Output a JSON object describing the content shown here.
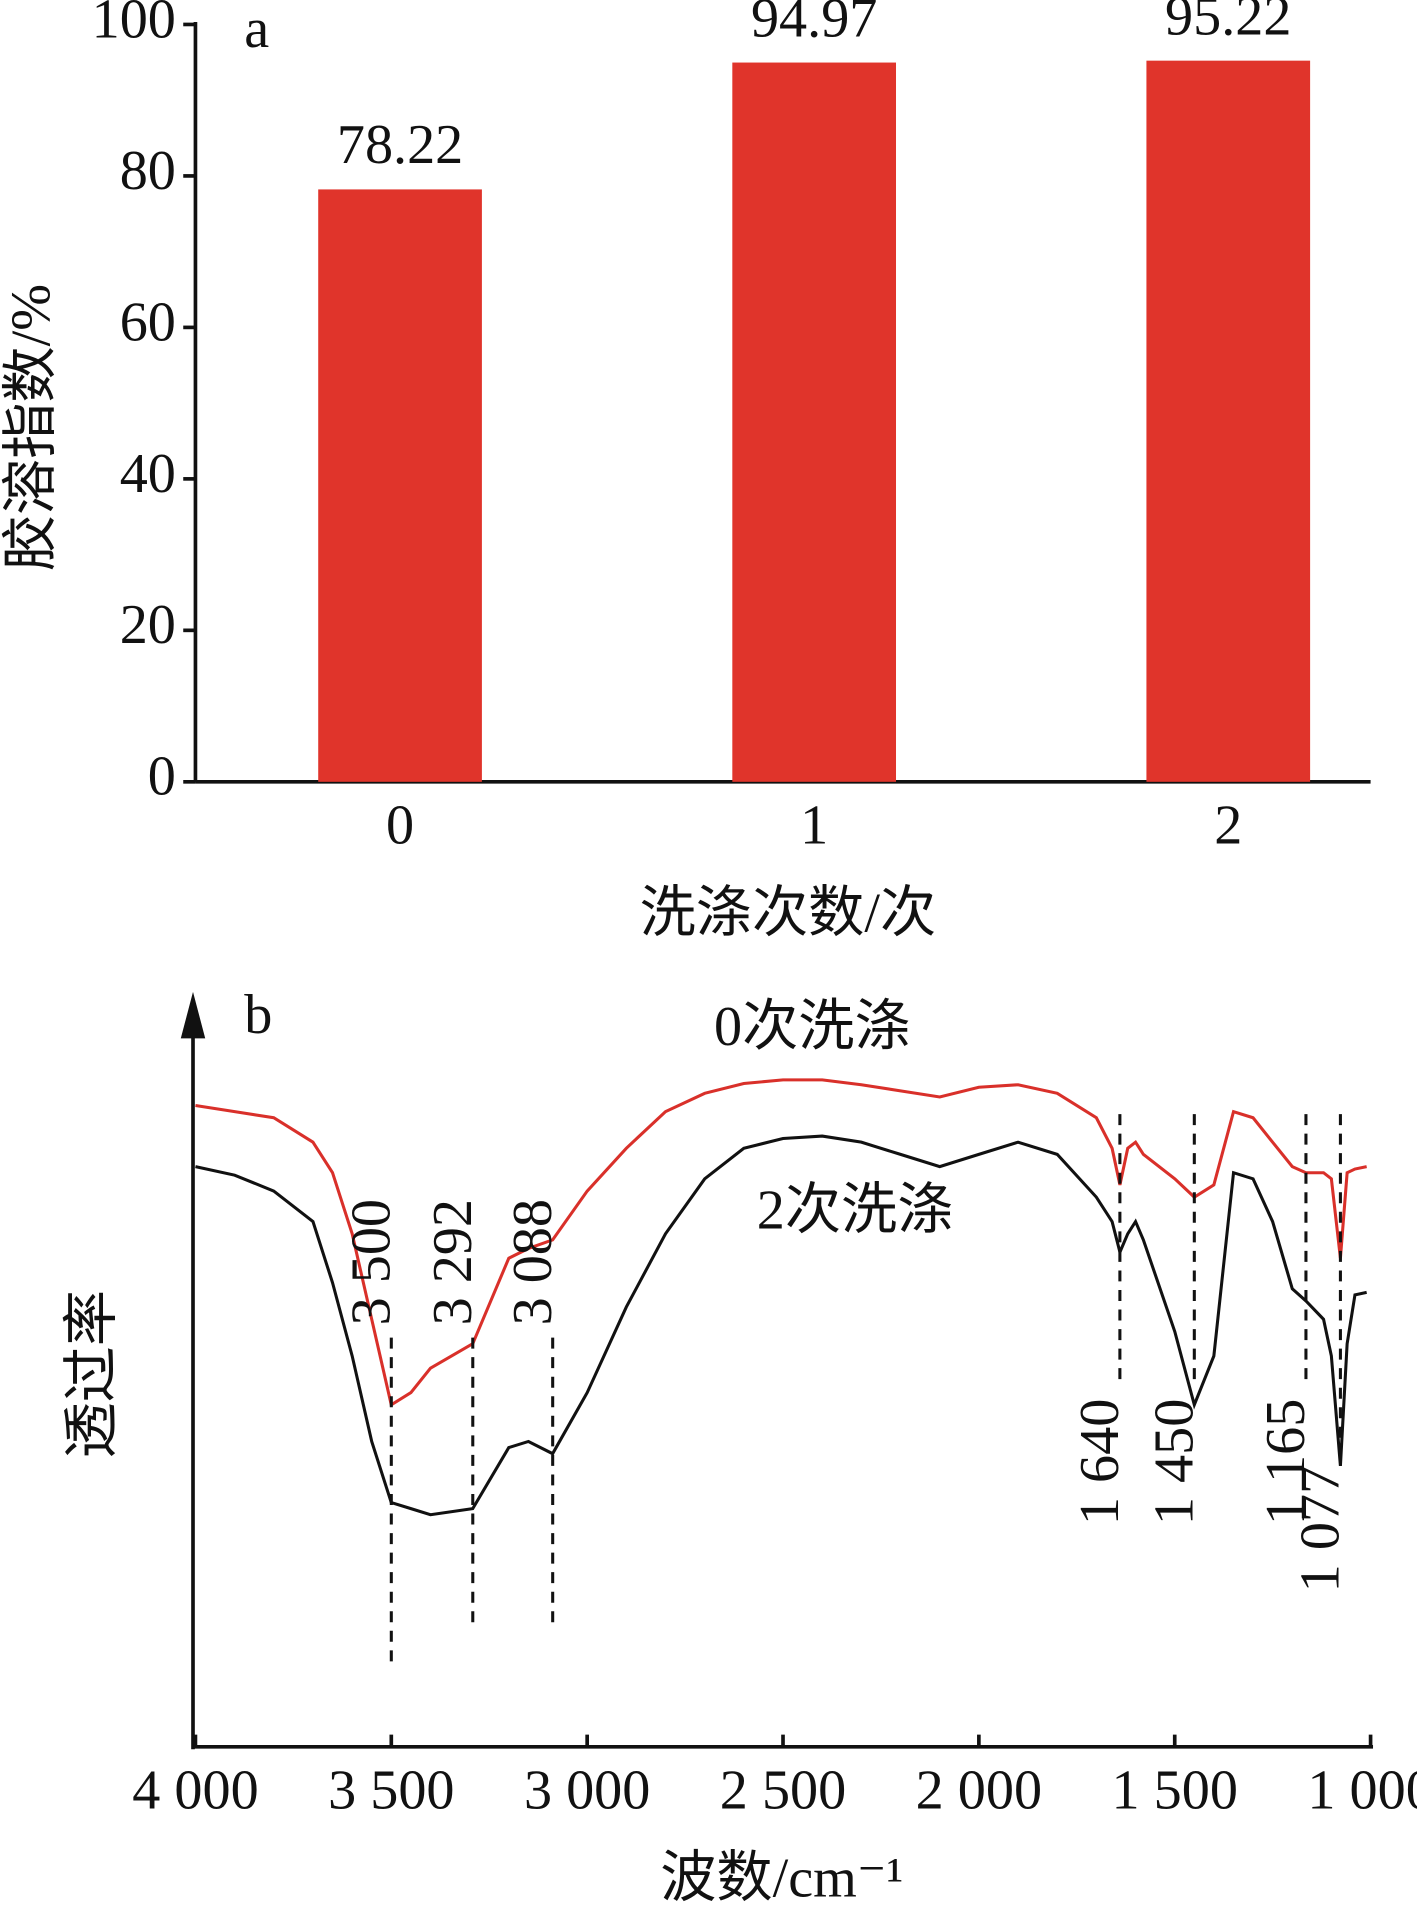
{
  "chart_data": [
    {
      "type": "bar",
      "panel_label": "a",
      "y_label": "胶溶指数/%",
      "x_label": "洗涤次数/次",
      "categories": [
        "0",
        "1",
        "2"
      ],
      "values": [
        78.22,
        94.97,
        95.22
      ],
      "color": "#e0342b",
      "ylim": [
        0,
        100
      ],
      "yticks": [
        0,
        20,
        40,
        60,
        80,
        100
      ]
    },
    {
      "type": "line",
      "panel_label": "b",
      "y_label": "透过率",
      "x_label": "波数/cm⁻¹",
      "xlim": [
        4000,
        1000
      ],
      "xticks": [
        {
          "value": 4000,
          "label": "4 000"
        },
        {
          "value": 3500,
          "label": "3 500"
        },
        {
          "value": 3000,
          "label": "3 000"
        },
        {
          "value": 2500,
          "label": "2 500"
        },
        {
          "value": 2000,
          "label": "2 000"
        },
        {
          "value": 1500,
          "label": "1 500"
        },
        {
          "value": 1000,
          "label": "1 000"
        }
      ],
      "ylim": [
        0,
        610
      ],
      "x": [
        4000,
        3900,
        3800,
        3700,
        3650,
        3600,
        3550,
        3500,
        3450,
        3400,
        3292,
        3200,
        3150,
        3088,
        3000,
        2900,
        2800,
        2700,
        2600,
        2500,
        2400,
        2300,
        2200,
        2100,
        2000,
        1900,
        1800,
        1700,
        1660,
        1640,
        1620,
        1600,
        1580,
        1500,
        1450,
        1400,
        1350,
        1300,
        1250,
        1200,
        1165,
        1120,
        1100,
        1077,
        1060,
        1040,
        1010
      ],
      "series": [
        {
          "name": "0次洗涤",
          "color": "#d9302a",
          "values": [
            525,
            520,
            515,
            495,
            470,
            420,
            350,
            280,
            290,
            310,
            330,
            400,
            408,
            415,
            455,
            490,
            520,
            535,
            543,
            546,
            546,
            542,
            537,
            532,
            540,
            542,
            535,
            515,
            490,
            460,
            490,
            495,
            485,
            465,
            450,
            460,
            520,
            515,
            495,
            475,
            470,
            470,
            465,
            400,
            470,
            473,
            475
          ]
        },
        {
          "name": "2次洗涤",
          "color": "#111111",
          "values": [
            475,
            468,
            455,
            430,
            380,
            320,
            250,
            200,
            195,
            190,
            195,
            245,
            250,
            240,
            290,
            360,
            420,
            465,
            490,
            498,
            500,
            495,
            485,
            475,
            485,
            495,
            485,
            450,
            430,
            405,
            420,
            430,
            415,
            340,
            280,
            320,
            470,
            465,
            430,
            375,
            365,
            350,
            320,
            230,
            330,
            370,
            372
          ]
        }
      ],
      "annotations": [
        {
          "label": "3 500",
          "x": 3500
        },
        {
          "label": "3 292",
          "x": 3292
        },
        {
          "label": "3 088",
          "x": 3088
        },
        {
          "label": "1 640",
          "x": 1640
        },
        {
          "label": "1 450",
          "x": 1450
        },
        {
          "label": "1 165",
          "x": 1165
        },
        {
          "label": "1 077",
          "x": 1077
        }
      ]
    }
  ]
}
